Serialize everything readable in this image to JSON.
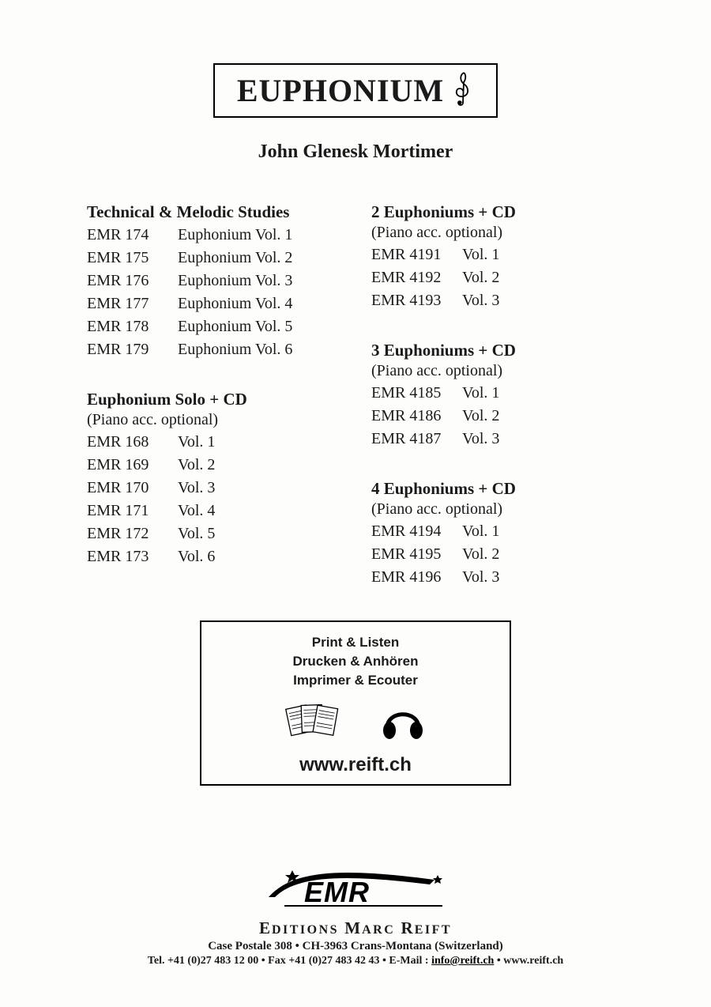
{
  "title": "EUPHONIUM",
  "composer": "John Glenesk Mortimer",
  "leftColumn": [
    {
      "heading": "Technical & Melodic Studies",
      "subtitle": null,
      "items": [
        {
          "code": "EMR 174",
          "label": "Euphonium Vol. 1"
        },
        {
          "code": "EMR 175",
          "label": "Euphonium Vol. 2"
        },
        {
          "code": "EMR 176",
          "label": "Euphonium Vol. 3"
        },
        {
          "code": "EMR 177",
          "label": "Euphonium Vol. 4"
        },
        {
          "code": "EMR 178",
          "label": "Euphonium Vol. 5"
        },
        {
          "code": "EMR 179",
          "label": "Euphonium Vol. 6"
        }
      ]
    },
    {
      "heading": "Euphonium Solo + CD",
      "subtitle": "(Piano acc. optional)",
      "items": [
        {
          "code": "EMR 168",
          "label": "Vol. 1"
        },
        {
          "code": "EMR 169",
          "label": "Vol. 2"
        },
        {
          "code": "EMR 170",
          "label": "Vol. 3"
        },
        {
          "code": "EMR 171",
          "label": "Vol. 4"
        },
        {
          "code": "EMR 172",
          "label": "Vol. 5"
        },
        {
          "code": "EMR 173",
          "label": "Vol. 6"
        }
      ]
    }
  ],
  "rightColumn": [
    {
      "heading": "2 Euphoniums + CD",
      "subtitle": "(Piano acc. optional)",
      "items": [
        {
          "code": "EMR 4191",
          "label": "Vol. 1"
        },
        {
          "code": "EMR 4192",
          "label": "Vol. 2"
        },
        {
          "code": "EMR 4193",
          "label": "Vol. 3"
        }
      ]
    },
    {
      "heading": "3 Euphoniums + CD",
      "subtitle": "(Piano acc. optional)",
      "items": [
        {
          "code": "EMR 4185",
          "label": "Vol. 1"
        },
        {
          "code": "EMR 4186",
          "label": "Vol. 2"
        },
        {
          "code": "EMR 4187",
          "label": "Vol. 3"
        }
      ]
    },
    {
      "heading": "4 Euphoniums + CD",
      "subtitle": "(Piano acc. optional)",
      "items": [
        {
          "code": "EMR 4194",
          "label": "Vol. 1"
        },
        {
          "code": "EMR 4195",
          "label": "Vol. 2"
        },
        {
          "code": "EMR 4196",
          "label": "Vol. 3"
        }
      ]
    }
  ],
  "promo": {
    "line1": "Print & Listen",
    "line2": "Drucken & Anhören",
    "line3": "Imprimer & Ecouter",
    "url": "www.reift.ch"
  },
  "footer": {
    "publisher_prefix": "E",
    "publisher_word1": "DITIONS",
    "publisher_mid": " M",
    "publisher_word2": "ARC",
    "publisher_end": " R",
    "publisher_word3": "EIFT",
    "address": "Case Postale 308 • CH-3963 Crans-Montana (Switzerland)",
    "tel_label": "Tel. ",
    "tel": "+41 (0)27 483 12 00",
    "fax_label": " • Fax ",
    "fax": "+41 (0)27 483 42 43",
    "email_label": " • E-Mail : ",
    "email": "info@reift.ch",
    "web_label": " • ",
    "web": "www.reift.ch"
  }
}
